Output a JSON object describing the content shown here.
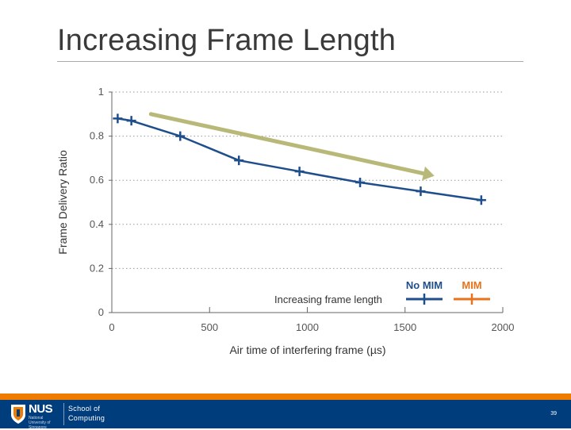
{
  "slide": {
    "title": "Increasing Frame Length",
    "page_number": "39"
  },
  "footer": {
    "logo_text": "NUS",
    "logo_subtext": "National University of Singapore",
    "school_line1": "School of",
    "school_line2": "Computing"
  },
  "colors": {
    "series_no_mim": "#1f4e8c",
    "series_mim": "#e8731c",
    "trend_arrow": "#b8b878",
    "footer_bg": "#003d7c",
    "footer_stripe": "#ef7c00",
    "grid": "#9a9a9a"
  },
  "chart_data": {
    "type": "line",
    "xlabel": "Air time of interfering frame (µs)",
    "ylabel": "Frame Delivery Ratio",
    "xlim": [
      0,
      2000
    ],
    "ylim": [
      0,
      1
    ],
    "x_ticks": [
      0,
      500,
      1000,
      1500,
      2000
    ],
    "x_tick_labels": [
      "0",
      "500",
      "1000",
      "1500",
      "2000"
    ],
    "y_ticks": [
      0,
      0.2,
      0.4,
      0.6,
      0.8,
      1
    ],
    "y_tick_labels": [
      "0",
      "0.2",
      "0.4",
      "0.6",
      "0.8",
      "1"
    ],
    "grid": "horizontal-dotted",
    "legend_placement": "bottom-right",
    "annotation": "Increasing frame length",
    "trend_arrow": {
      "from": [
        200,
        0.9
      ],
      "to": [
        1650,
        0.62
      ]
    },
    "series": [
      {
        "name": "No MIM",
        "color": "#1f4e8c",
        "x": [
          30,
          100,
          350,
          650,
          960,
          1270,
          1580,
          1890
        ],
        "y": [
          0.88,
          0.87,
          0.8,
          0.69,
          0.64,
          0.59,
          0.55,
          0.51
        ]
      },
      {
        "name": "MIM",
        "color": "#e8731c",
        "x": [],
        "y": []
      }
    ]
  }
}
